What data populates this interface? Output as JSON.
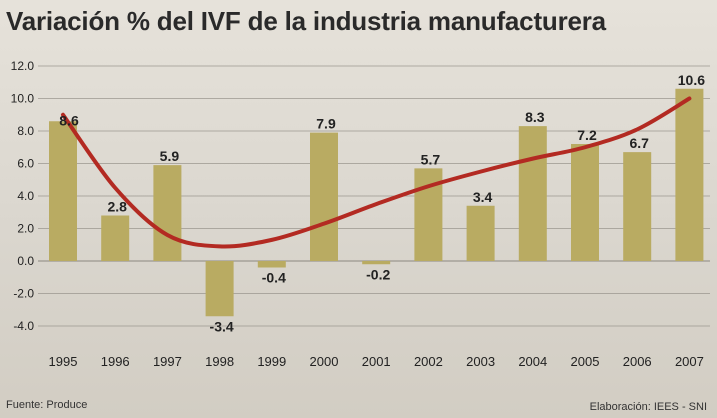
{
  "title": "Variación % del IVF de la industria manufacturera",
  "source": "Fuente: Produce",
  "credit": "Elaboración: IEES - SNI",
  "colors": {
    "bar": "#b9ab62",
    "trend": "#b32a22",
    "grid": "#9b978f",
    "text": "#222222"
  },
  "chart_data": {
    "type": "bar",
    "title": "Variación % del IVF de la industria manufacturera",
    "xlabel": "",
    "ylabel": "",
    "ylim": [
      -4.0,
      12.0
    ],
    "yticks": [
      "12.0",
      "10.0",
      "8.0",
      "6.0",
      "4.0",
      "2.0",
      "0.0",
      "-2.0",
      "-4.0"
    ],
    "grid": true,
    "categories": [
      "1995",
      "1996",
      "1997",
      "1998",
      "1999",
      "2000",
      "2001",
      "2002",
      "2003",
      "2004",
      "2005",
      "2006",
      "2007"
    ],
    "values": [
      8.6,
      2.8,
      5.9,
      -3.4,
      -0.4,
      7.9,
      -0.2,
      5.7,
      3.4,
      8.3,
      7.2,
      6.7,
      10.6
    ],
    "labels": [
      "8.6",
      "2.8",
      "5.9",
      "-3.4",
      "-0.4",
      "7.9",
      "-0.2",
      "5.7",
      "3.4",
      "8.3",
      "7.2",
      "6.7",
      "10.6"
    ],
    "trend": {
      "type": "line",
      "values": [
        9.0,
        4.5,
        1.6,
        0.9,
        1.3,
        2.3,
        3.5,
        4.6,
        5.5,
        6.3,
        7.0,
        8.1,
        10.0
      ]
    }
  }
}
